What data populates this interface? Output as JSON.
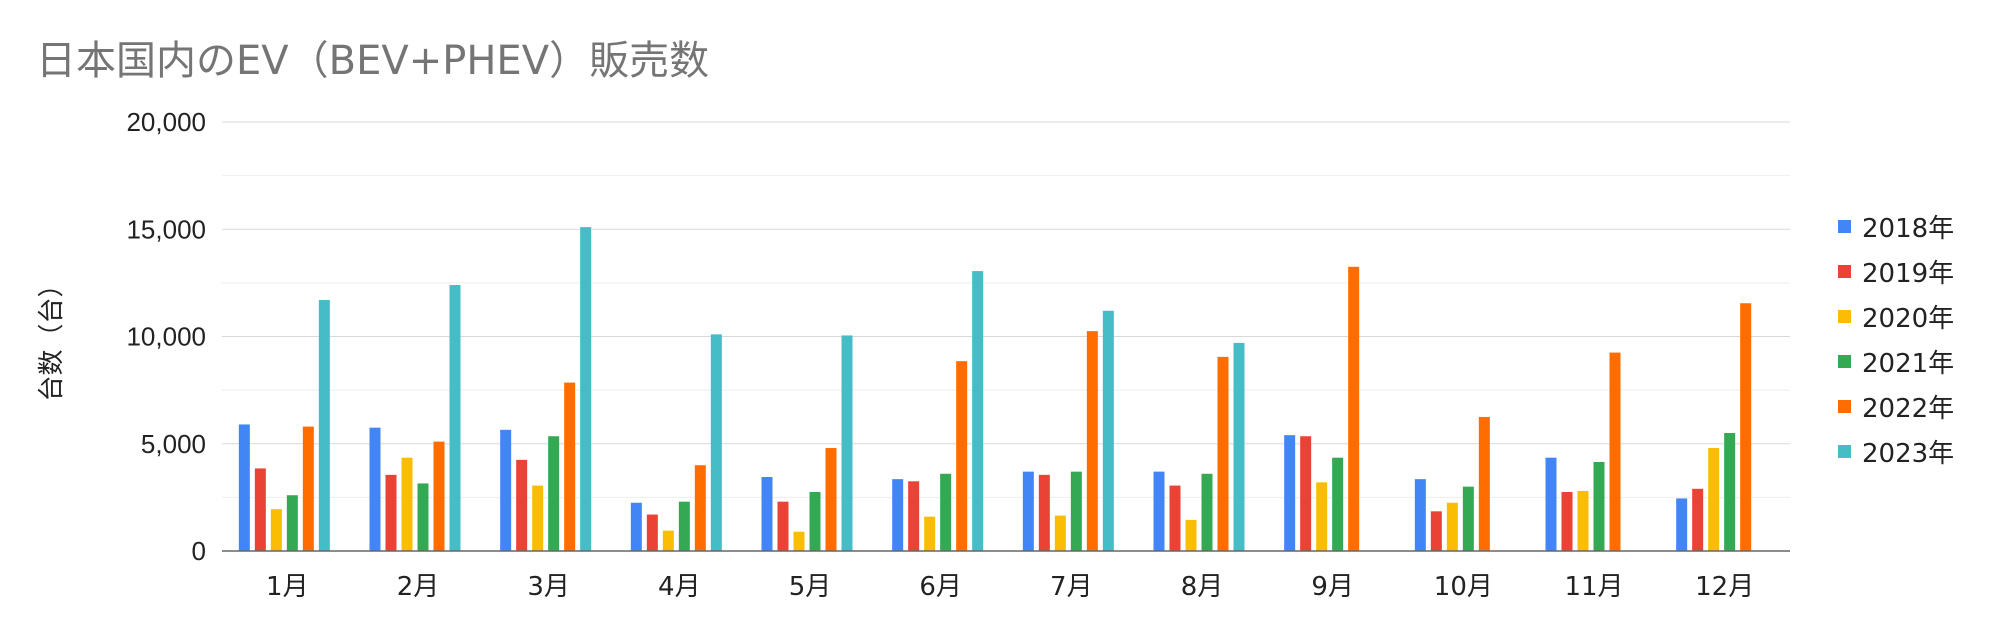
{
  "chart_data": {
    "type": "bar",
    "title": "日本国内のEV（BEV+PHEV）販売数",
    "xlabel": "",
    "ylabel": "台数（台）",
    "ylim": [
      0,
      20000
    ],
    "yticks": [
      "0",
      "5,000",
      "10,000",
      "15,000",
      "20,000"
    ],
    "grid": true,
    "legend_position": "right",
    "categories": [
      "1月",
      "2月",
      "3月",
      "4月",
      "5月",
      "6月",
      "7月",
      "8月",
      "9月",
      "10月",
      "11月",
      "12月"
    ],
    "series": [
      {
        "name": "2018年",
        "color": "#4285F4",
        "values": [
          5900,
          5750,
          5650,
          2250,
          3450,
          3350,
          3700,
          3700,
          5400,
          3350,
          4350,
          2450
        ]
      },
      {
        "name": "2019年",
        "color": "#EA4335",
        "values": [
          3850,
          3550,
          4250,
          1700,
          2300,
          3250,
          3550,
          3050,
          5350,
          1850,
          2750,
          2900
        ]
      },
      {
        "name": "2020年",
        "color": "#FBBC04",
        "values": [
          1950,
          4350,
          3050,
          950,
          900,
          1600,
          1650,
          1450,
          3200,
          2250,
          2800,
          4800
        ]
      },
      {
        "name": "2021年",
        "color": "#34A853",
        "values": [
          2600,
          3150,
          5350,
          2300,
          2750,
          3600,
          3700,
          3600,
          4350,
          3000,
          4150,
          5500
        ]
      },
      {
        "name": "2022年",
        "color": "#FF6D01",
        "values": [
          5800,
          5100,
          7850,
          4000,
          4800,
          8850,
          10250,
          9050,
          13250,
          6250,
          9250,
          11550
        ]
      },
      {
        "name": "2023年",
        "color": "#46BDC6",
        "values": [
          11700,
          12400,
          15100,
          10100,
          10050,
          13050,
          11200,
          9700,
          null,
          null,
          null,
          null
        ]
      }
    ]
  }
}
